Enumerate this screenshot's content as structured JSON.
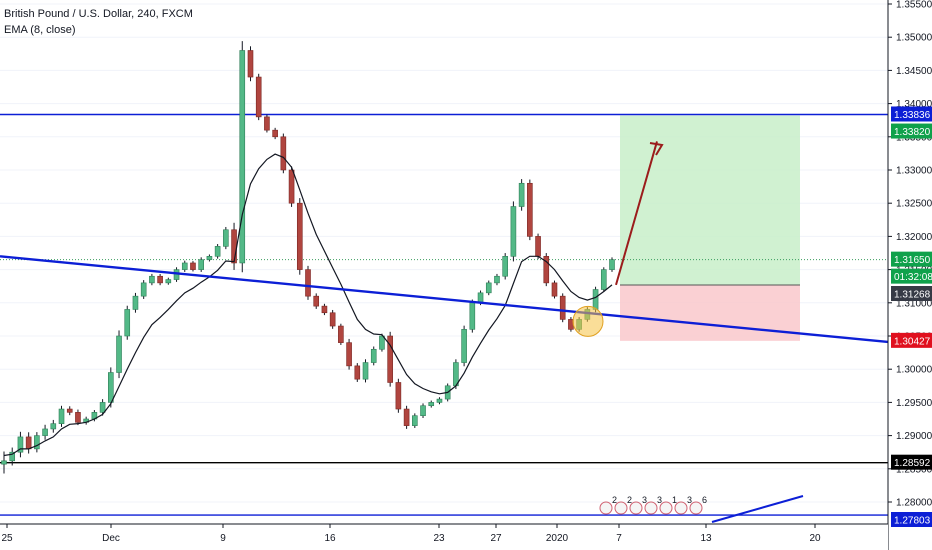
{
  "header": {
    "symbol_line": "British Pound / U.S. Dollar, 240, FXCM",
    "indicator_line": "EMA (8, close)"
  },
  "colors": {
    "up": "#53b987",
    "down": "#eb4d5c",
    "candle_body_up": "#53b987",
    "candle_body_down": "#b0453f",
    "wick": "#131722",
    "ema": "#131722",
    "blue_line": "#0c1fd6",
    "black_line": "#000000",
    "profit_zone": "#c8efc9",
    "loss_zone": "#f9c8cb",
    "arrow": "#9b1c1c",
    "highlight": "#f5c343"
  },
  "chart_data": {
    "type": "candlestick",
    "title": "British Pound / U.S. Dollar, 240, FXCM",
    "indicator": "EMA (8, close)",
    "y_range": [
      1.2775,
      1.3555
    ],
    "y_ticks": [
      "1.35500",
      "1.35000",
      "1.34500",
      "1.34000",
      "1.33500",
      "1.33000",
      "1.32500",
      "1.32000",
      "1.31500",
      "1.31000",
      "1.30500",
      "1.30000",
      "1.29500",
      "1.29000",
      "1.28500",
      "1.28000"
    ],
    "x_ticks": [
      "25",
      "Dec",
      "9",
      "16",
      "23",
      "27",
      "2020",
      "7",
      "13",
      "20"
    ],
    "price_tags": [
      {
        "label": "1.33836",
        "value": 1.33836,
        "style": "blue"
      },
      {
        "label": "1.33820",
        "value": 1.3382,
        "style": "green"
      },
      {
        "label": "1.31650",
        "value": 1.3165,
        "style": "green"
      },
      {
        "label": "01:32:08",
        "value": 1.3145,
        "style": "green"
      },
      {
        "label": "1.31268",
        "value": 1.31268,
        "style": "dark"
      },
      {
        "label": "1.30427",
        "value": 1.30427,
        "style": "red"
      },
      {
        "label": "1.28592",
        "value": 1.28592,
        "style": "black"
      },
      {
        "label": "1.27803",
        "value": 1.27803,
        "style": "blue"
      }
    ],
    "horizontal_lines": [
      {
        "value": 1.33836,
        "color": "blue"
      },
      {
        "value": 1.28592,
        "color": "black"
      },
      {
        "value": 1.27803,
        "color": "blue"
      }
    ],
    "current_price": 1.3165,
    "position": {
      "type": "long",
      "entry": 1.31268,
      "target": 1.3382,
      "stop": 1.30427
    },
    "close_path": [
      [
        1.2862,
        40
      ],
      [
        1.2875,
        20
      ],
      [
        1.2898,
        22
      ],
      [
        1.288,
        20
      ],
      [
        1.29,
        15
      ],
      [
        1.291,
        18
      ],
      [
        1.2918,
        16
      ],
      [
        1.294,
        14
      ],
      [
        1.2935,
        12
      ],
      [
        1.292,
        12
      ],
      [
        1.2925,
        10
      ],
      [
        1.2935,
        10
      ],
      [
        1.295,
        14
      ],
      [
        1.2995,
        22
      ],
      [
        1.305,
        24
      ],
      [
        1.309,
        16
      ],
      [
        1.311,
        14
      ],
      [
        1.313,
        12
      ],
      [
        1.314,
        10
      ],
      [
        1.313,
        10
      ],
      [
        1.3135,
        8
      ],
      [
        1.315,
        10
      ],
      [
        1.316,
        10
      ],
      [
        1.315,
        8
      ],
      [
        1.3165,
        10
      ],
      [
        1.317,
        8
      ],
      [
        1.3185,
        10
      ],
      [
        1.321,
        12
      ],
      [
        1.316,
        30
      ],
      [
        1.348,
        40
      ],
      [
        1.344,
        18
      ],
      [
        1.338,
        14
      ],
      [
        1.336,
        10
      ],
      [
        1.335,
        10
      ],
      [
        1.33,
        14
      ],
      [
        1.325,
        16
      ],
      [
        1.315,
        22
      ],
      [
        1.311,
        16
      ],
      [
        1.3095,
        12
      ],
      [
        1.3085,
        10
      ],
      [
        1.3065,
        12
      ],
      [
        1.304,
        10
      ],
      [
        1.3005,
        16
      ],
      [
        1.2985,
        12
      ],
      [
        1.301,
        14
      ],
      [
        1.303,
        12
      ],
      [
        1.305,
        10
      ],
      [
        1.298,
        18
      ],
      [
        1.294,
        16
      ],
      [
        1.2915,
        14
      ],
      [
        1.293,
        10
      ],
      [
        1.2945,
        10
      ],
      [
        1.295,
        8
      ],
      [
        1.2955,
        8
      ],
      [
        1.2975,
        10
      ],
      [
        1.301,
        14
      ],
      [
        1.306,
        16
      ],
      [
        1.31,
        14
      ],
      [
        1.3115,
        10
      ],
      [
        1.313,
        10
      ],
      [
        1.314,
        10
      ],
      [
        1.317,
        14
      ],
      [
        1.3245,
        22
      ],
      [
        1.328,
        18
      ],
      [
        1.32,
        16
      ],
      [
        1.317,
        12
      ],
      [
        1.313,
        14
      ],
      [
        1.311,
        10
      ],
      [
        1.3075,
        12
      ],
      [
        1.306,
        10
      ],
      [
        1.3075,
        10
      ],
      [
        1.309,
        10
      ],
      [
        1.312,
        12
      ],
      [
        1.315,
        10
      ],
      [
        1.3165,
        10
      ]
    ],
    "ema_path": [
      1.287,
      1.2872,
      1.288,
      1.288,
      1.2885,
      1.2892,
      1.2898,
      1.291,
      1.2917,
      1.2918,
      1.292,
      1.2925,
      1.2932,
      1.2948,
      1.2974,
      1.3,
      1.3025,
      1.3048,
      1.3067,
      1.3078,
      1.309,
      1.3103,
      1.3115,
      1.3122,
      1.3131,
      1.3139,
      1.3149,
      1.3163,
      1.3162,
      1.3233,
      1.3279,
      1.3302,
      1.3316,
      1.3324,
      1.3319,
      1.3304,
      1.327,
      1.3235,
      1.3203,
      1.3178,
      1.3153,
      1.3128,
      1.3101,
      1.3075,
      1.306,
      1.3053,
      1.3052,
      1.3036,
      1.3014,
      1.2992,
      1.2978,
      1.2971,
      1.2966,
      1.2963,
      1.2965,
      1.2975,
      1.2994,
      1.3018,
      1.3039,
      1.3059,
      1.3076,
      1.3096,
      1.3129,
      1.3162,
      1.317,
      1.317,
      1.3162,
      1.315,
      1.3133,
      1.3117,
      1.3108,
      1.3104,
      1.3108,
      1.3117,
      1.3127
    ],
    "trendline": {
      "from_value": 1.317,
      "to_value": 1.3041
    },
    "events": [
      "2",
      "2",
      "3",
      "3",
      "1",
      "3",
      "6"
    ]
  }
}
